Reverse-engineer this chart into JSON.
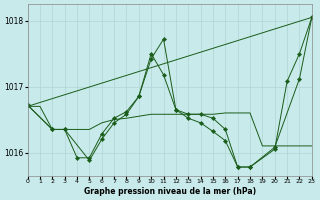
{
  "title": "Graphe pression niveau de la mer (hPa)",
  "background_color": "#c8eaea",
  "grid_color": "#b0d4d4",
  "line_color": "#1a5c1a",
  "xlim": [
    0,
    23
  ],
  "ylim": [
    1015.65,
    1018.25
  ],
  "yticks": [
    1016,
    1017,
    1018
  ],
  "xticks": [
    0,
    1,
    2,
    3,
    4,
    5,
    6,
    7,
    8,
    9,
    10,
    11,
    12,
    13,
    14,
    15,
    16,
    17,
    18,
    19,
    20,
    21,
    22,
    23
  ],
  "series": [
    {
      "x": [
        0,
        23
      ],
      "y": [
        1016.7,
        1018.05
      ],
      "marker": false
    },
    {
      "x": [
        0,
        1,
        2,
        3,
        4,
        5,
        6,
        7,
        8,
        9,
        10,
        11,
        12,
        13,
        14,
        15,
        16,
        17,
        18,
        19,
        20,
        21,
        22,
        23
      ],
      "y": [
        1016.7,
        1016.7,
        1016.35,
        1016.35,
        1016.35,
        1016.35,
        1016.45,
        1016.5,
        1016.52,
        1016.55,
        1016.58,
        1016.58,
        1016.58,
        1016.58,
        1016.58,
        1016.58,
        1016.6,
        1016.6,
        1016.6,
        1016.1,
        1016.1,
        1016.1,
        1016.1,
        1016.1
      ],
      "marker": false
    },
    {
      "x": [
        0,
        2,
        3,
        5,
        6,
        7,
        8,
        9,
        10,
        11,
        12,
        13,
        14,
        15,
        16,
        17,
        18,
        20,
        22,
        23
      ],
      "y": [
        1016.72,
        1016.35,
        1016.35,
        1015.88,
        1016.2,
        1016.45,
        1016.58,
        1016.85,
        1017.5,
        1017.18,
        1016.65,
        1016.52,
        1016.45,
        1016.32,
        1016.18,
        1015.78,
        1015.78,
        1016.08,
        1017.12,
        1018.05
      ],
      "marker": true
    },
    {
      "x": [
        0,
        2,
        3,
        4,
        5,
        6,
        7,
        8,
        9,
        10,
        11,
        12,
        13,
        14,
        15,
        16,
        17,
        18,
        20,
        21,
        22,
        23
      ],
      "y": [
        1016.72,
        1016.35,
        1016.35,
        1015.92,
        1015.92,
        1016.28,
        1016.52,
        1016.62,
        1016.85,
        1017.42,
        1017.72,
        1016.65,
        1016.58,
        1016.58,
        1016.52,
        1016.35,
        1015.78,
        1015.78,
        1016.05,
        1017.08,
        1017.5,
        1018.05
      ],
      "marker": true
    }
  ]
}
